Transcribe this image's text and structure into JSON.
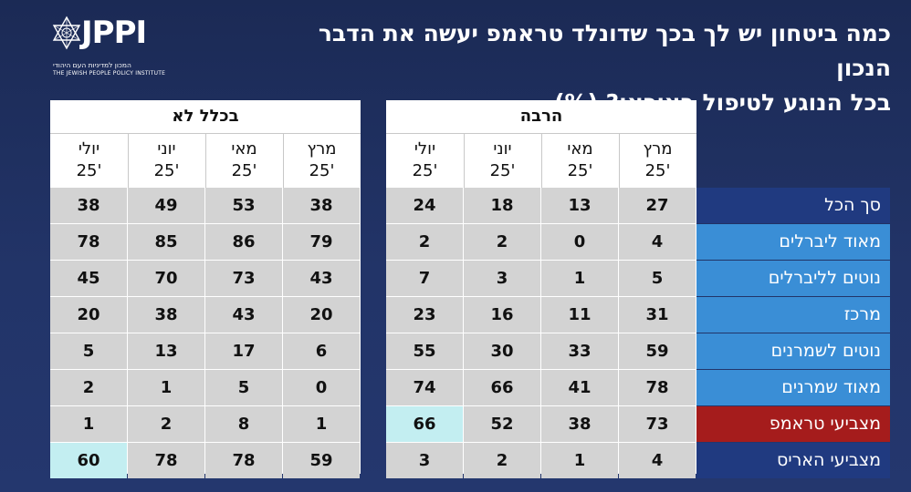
{
  "title": {
    "line1": "כמה ביטחון יש לך בכך שדונלד טראמפ יעשה את הדבר הנכון",
    "line2": "בכל הנוגע לטיפול באיראן? (%)"
  },
  "logo": {
    "brand": "JPPI",
    "subtitle_he": "המכון למדיניות העם היהודי",
    "subtitle_en": "THE JEWISH PEOPLE POLICY INSTITUTE"
  },
  "colors": {
    "background": "#1f2f5e",
    "row_label_blue": "#3a8ed6",
    "row_label_navy": "#203a80",
    "row_label_red": "#a51c1c",
    "cell_gray": "#d3d3d3",
    "cell_highlight": "#c3eef1"
  },
  "chart_data": {
    "type": "table",
    "title": "כמה ביטחון יש לך בכך שדונלד טראמפ יעשה את הדבר הנכון בכל הנוגע לטיפול באיראן? (%)",
    "groups": [
      {
        "name": "הרבה",
        "columns": [
          "מרץ '25",
          "מאי '25",
          "יוני '25",
          "יולי '25"
        ]
      },
      {
        "name": "בכלל לא",
        "columns": [
          "מרץ '25",
          "מאי '25",
          "יוני '25",
          "יולי '25"
        ]
      }
    ],
    "months": [
      {
        "name": "מרץ",
        "year": "'25"
      },
      {
        "name": "מאי",
        "year": "'25"
      },
      {
        "name": "יוני",
        "year": "'25"
      },
      {
        "name": "יולי",
        "year": "'25"
      }
    ],
    "rows": [
      {
        "label": "סך הכל",
        "color": "#203a80",
        "harbe": [
          27,
          13,
          18,
          24
        ],
        "bikhlal_lo": [
          38,
          53,
          49,
          38
        ]
      },
      {
        "label": "מאוד ליברלים",
        "color": "#3a8ed6",
        "harbe": [
          4,
          0,
          2,
          2
        ],
        "bikhlal_lo": [
          79,
          86,
          85,
          78
        ]
      },
      {
        "label": "נוטים לליברלים",
        "color": "#3a8ed6",
        "harbe": [
          5,
          1,
          3,
          7
        ],
        "bikhlal_lo": [
          43,
          73,
          70,
          45
        ]
      },
      {
        "label": "מרכז",
        "color": "#3a8ed6",
        "harbe": [
          31,
          11,
          16,
          23
        ],
        "bikhlal_lo": [
          20,
          43,
          38,
          20
        ]
      },
      {
        "label": "נוטים לשמרנים",
        "color": "#3a8ed6",
        "harbe": [
          59,
          33,
          30,
          55
        ],
        "bikhlal_lo": [
          6,
          17,
          13,
          5
        ]
      },
      {
        "label": "מאוד שמרנים",
        "color": "#3a8ed6",
        "harbe": [
          78,
          41,
          66,
          74
        ],
        "bikhlal_lo": [
          0,
          5,
          1,
          2
        ]
      },
      {
        "label": "מצביעי טראמפ",
        "color": "#a51c1c",
        "harbe": [
          73,
          38,
          52,
          66
        ],
        "bikhlal_lo": [
          1,
          8,
          2,
          1
        ]
      },
      {
        "label": "מצביעי האריס",
        "color": "#203a80",
        "harbe": [
          4,
          1,
          2,
          3
        ],
        "bikhlal_lo": [
          59,
          78,
          78,
          60
        ]
      }
    ],
    "highlighted": [
      {
        "row": 6,
        "group": "harbe",
        "col": 3
      },
      {
        "row": 7,
        "group": "bikhlal_lo",
        "col": 3
      }
    ]
  }
}
